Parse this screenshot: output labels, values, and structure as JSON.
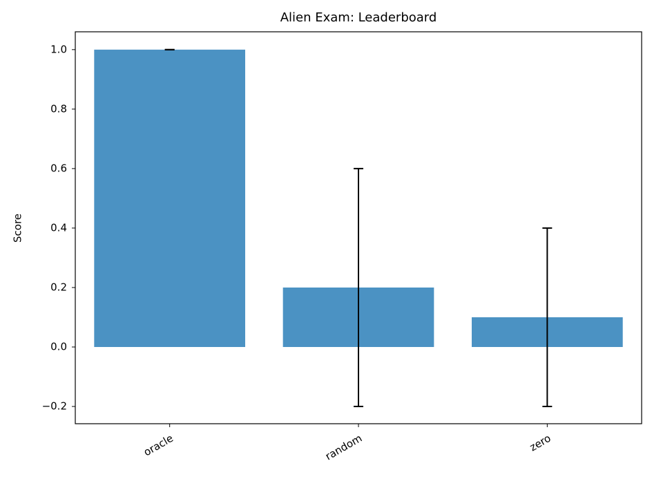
{
  "chart_data": {
    "type": "bar",
    "title": "Alien Exam: Leaderboard",
    "y_label": "Score",
    "categories": [
      "oracle",
      "random",
      "zero"
    ],
    "values": [
      1.0,
      0.2,
      0.1
    ],
    "errors": [
      0,
      0.4,
      0.3
    ],
    "color": "#4b92c3",
    "error_color": "#000000",
    "ylim": [
      -0.258,
      1.06
    ],
    "yticks": [
      {
        "value": -0.2,
        "label": "−0.2"
      },
      {
        "value": 0,
        "label": "0.0"
      },
      0.2,
      0.4,
      0.6,
      0.8,
      {
        "value": 1.0,
        "label": "1.0"
      }
    ],
    "grid": false
  }
}
